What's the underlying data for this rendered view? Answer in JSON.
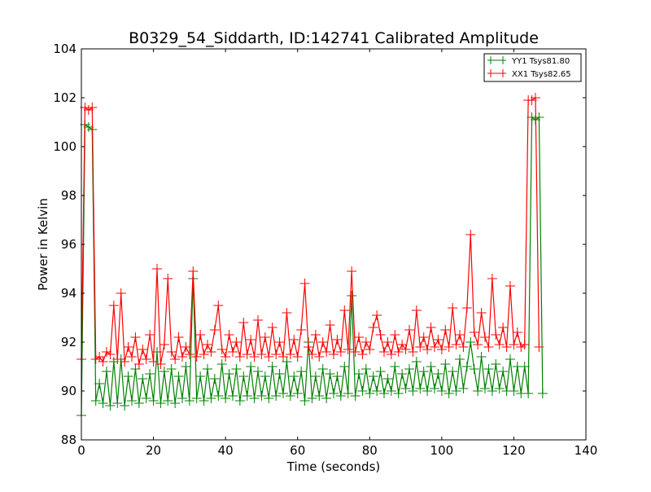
{
  "chart_data": {
    "type": "line",
    "title": "B0329_54_Siddarth, ID:142741 Calibrated Amplitude",
    "xlabel": "Time (seconds)",
    "ylabel": "Power in Kelvin",
    "xlim": [
      0,
      140
    ],
    "ylim": [
      88,
      104
    ],
    "xticks": [
      "0",
      "20",
      "40",
      "60",
      "80",
      "100",
      "120",
      "140"
    ],
    "yticks": [
      "88",
      "90",
      "92",
      "94",
      "96",
      "98",
      "100",
      "102",
      "104"
    ],
    "legend_position": "top-right",
    "x_start": 0,
    "x_step": 1,
    "series": [
      {
        "name": "YY1 Tsys81.80",
        "color": "#008000",
        "values": [
          89.0,
          100.9,
          100.8,
          100.7,
          89.6,
          90.3,
          89.5,
          90.8,
          89.4,
          91.2,
          89.5,
          91.3,
          89.4,
          90.6,
          89.6,
          90.9,
          89.5,
          90.5,
          89.7,
          90.7,
          89.6,
          91.6,
          89.5,
          90.8,
          89.6,
          90.9,
          89.5,
          90.6,
          89.7,
          91.0,
          89.6,
          94.6,
          89.7,
          90.6,
          89.6,
          90.9,
          89.7,
          90.5,
          89.8,
          91.1,
          89.7,
          90.7,
          89.8,
          90.9,
          89.6,
          90.6,
          89.8,
          91.0,
          89.7,
          90.8,
          89.8,
          90.6,
          89.7,
          91.0,
          89.8,
          90.7,
          89.9,
          91.2,
          89.8,
          90.6,
          89.9,
          90.8,
          89.6,
          92.0,
          89.7,
          90.6,
          89.8,
          90.9,
          89.7,
          90.7,
          89.9,
          90.6,
          89.8,
          91.0,
          89.9,
          93.9,
          89.8,
          90.7,
          90.0,
          90.9,
          89.9,
          90.6,
          90.0,
          90.8,
          89.9,
          90.5,
          90.0,
          91.0,
          89.9,
          90.7,
          90.1,
          90.9,
          90.0,
          91.2,
          90.1,
          90.8,
          90.0,
          91.0,
          90.1,
          90.7,
          90.0,
          91.1,
          89.9,
          90.8,
          90.0,
          91.3,
          90.1,
          91.0,
          92.0,
          90.9,
          90.0,
          91.4,
          90.1,
          90.9,
          90.0,
          91.1,
          90.1,
          90.8,
          90.0,
          91.3,
          90.0,
          91.0,
          89.9,
          91.0,
          89.9,
          101.2,
          101.1,
          101.2,
          89.9
        ]
      },
      {
        "name": "XX1 Tsys82.65",
        "color": "#ff0000",
        "values": [
          91.3,
          101.6,
          101.5,
          101.6,
          91.3,
          91.4,
          91.2,
          91.6,
          91.5,
          93.5,
          91.3,
          94.0,
          91.2,
          91.8,
          91.4,
          92.2,
          91.1,
          91.7,
          91.3,
          92.3,
          91.2,
          95.0,
          91.1,
          91.9,
          94.6,
          91.6,
          91.3,
          92.2,
          91.4,
          91.8,
          91.5,
          94.9,
          91.4,
          92.3,
          91.5,
          91.9,
          91.6,
          92.5,
          93.5,
          91.7,
          91.4,
          92.3,
          91.6,
          92.0,
          91.4,
          92.8,
          91.5,
          92.1,
          91.4,
          92.9,
          91.5,
          92.2,
          91.4,
          92.6,
          91.5,
          92.0,
          91.4,
          93.2,
          91.5,
          92.1,
          91.4,
          92.5,
          94.4,
          91.8,
          91.5,
          92.3,
          91.4,
          92.0,
          91.6,
          92.7,
          91.5,
          92.1,
          91.6,
          93.3,
          91.7,
          94.9,
          91.6,
          92.2,
          91.5,
          92.0,
          91.7,
          92.6,
          93.1,
          92.3,
          91.6,
          92.0,
          91.5,
          92.3,
          91.6,
          91.9,
          91.7,
          92.5,
          91.6,
          93.3,
          91.8,
          92.2,
          91.7,
          92.6,
          91.8,
          92.1,
          91.7,
          92.5,
          91.8,
          93.4,
          91.9,
          92.3,
          91.8,
          93.4,
          96.4,
          92.4,
          91.9,
          93.2,
          92.2,
          91.8,
          94.6,
          92.3,
          91.9,
          92.6,
          91.8,
          94.3,
          91.9,
          92.4,
          91.8,
          91.9,
          101.9,
          101.9,
          102.0,
          91.8
        ]
      }
    ]
  }
}
